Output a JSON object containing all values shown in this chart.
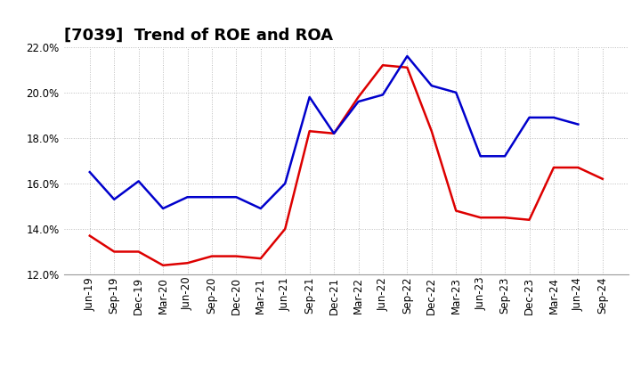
{
  "title": "[7039]  Trend of ROE and ROA",
  "x_labels": [
    "Jun-19",
    "Sep-19",
    "Dec-19",
    "Mar-20",
    "Jun-20",
    "Sep-20",
    "Dec-20",
    "Mar-21",
    "Jun-21",
    "Sep-21",
    "Dec-21",
    "Mar-22",
    "Jun-22",
    "Sep-22",
    "Dec-22",
    "Mar-23",
    "Jun-23",
    "Sep-23",
    "Dec-23",
    "Mar-24",
    "Jun-24",
    "Sep-24"
  ],
  "ROE": [
    13.7,
    13.0,
    13.0,
    12.4,
    12.5,
    12.8,
    12.8,
    12.7,
    14.0,
    18.3,
    18.2,
    19.8,
    21.2,
    21.1,
    18.3,
    14.8,
    14.5,
    14.5,
    14.4,
    16.7,
    16.7,
    16.2
  ],
  "ROA": [
    16.5,
    15.3,
    16.1,
    14.9,
    15.4,
    15.4,
    15.4,
    14.9,
    16.0,
    19.8,
    18.2,
    19.6,
    19.9,
    21.6,
    20.3,
    20.0,
    17.2,
    17.2,
    18.9,
    18.9,
    18.6,
    null
  ],
  "ylim": [
    12.0,
    22.0
  ],
  "yticks": [
    12.0,
    14.0,
    16.0,
    18.0,
    20.0,
    22.0
  ],
  "roe_color": "#dd0000",
  "roa_color": "#0000cc",
  "background_color": "#ffffff",
  "grid_color": "#bbbbbb",
  "title_fontsize": 13,
  "axis_fontsize": 8.5,
  "legend_fontsize": 10
}
